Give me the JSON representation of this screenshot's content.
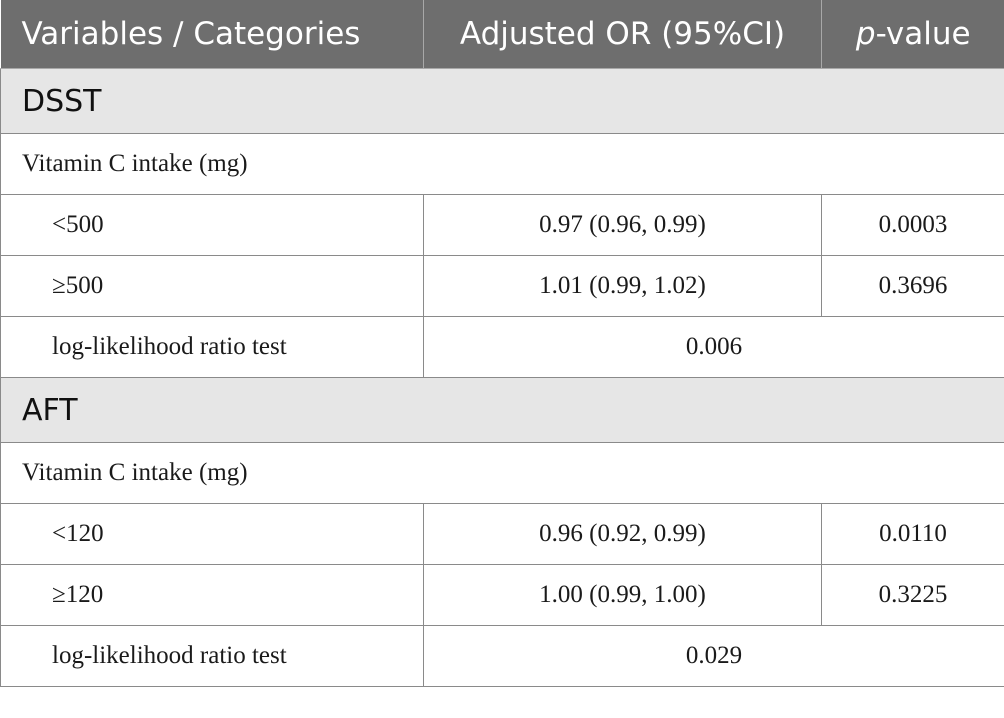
{
  "header": {
    "col1": "Variables / Categories",
    "col2": "Adjusted OR (95%CI)",
    "col3_italic": "p",
    "col3_rest": "-value"
  },
  "sections": [
    {
      "title": "DSST",
      "group_label": "Vitamin C intake (mg)",
      "rows": [
        {
          "category": "<500",
          "or_ci": "0.97 (0.96, 0.99)",
          "p": "0.0003"
        },
        {
          "category": "≥500",
          "or_ci": "1.01 (0.99, 1.02)",
          "p": "0.3696"
        }
      ],
      "lr_test": {
        "label": "log-likelihood ratio test",
        "value": "0.006"
      }
    },
    {
      "title": "AFT",
      "group_label": "Vitamin C intake (mg)",
      "rows": [
        {
          "category": "<120",
          "or_ci": "0.96 (0.92, 0.99)",
          "p": "0.0110"
        },
        {
          "category": "≥120",
          "or_ci": "1.00 (0.99, 1.00)",
          "p": "0.3225"
        }
      ],
      "lr_test": {
        "label": "log-likelihood ratio test",
        "value": "0.029"
      }
    }
  ]
}
